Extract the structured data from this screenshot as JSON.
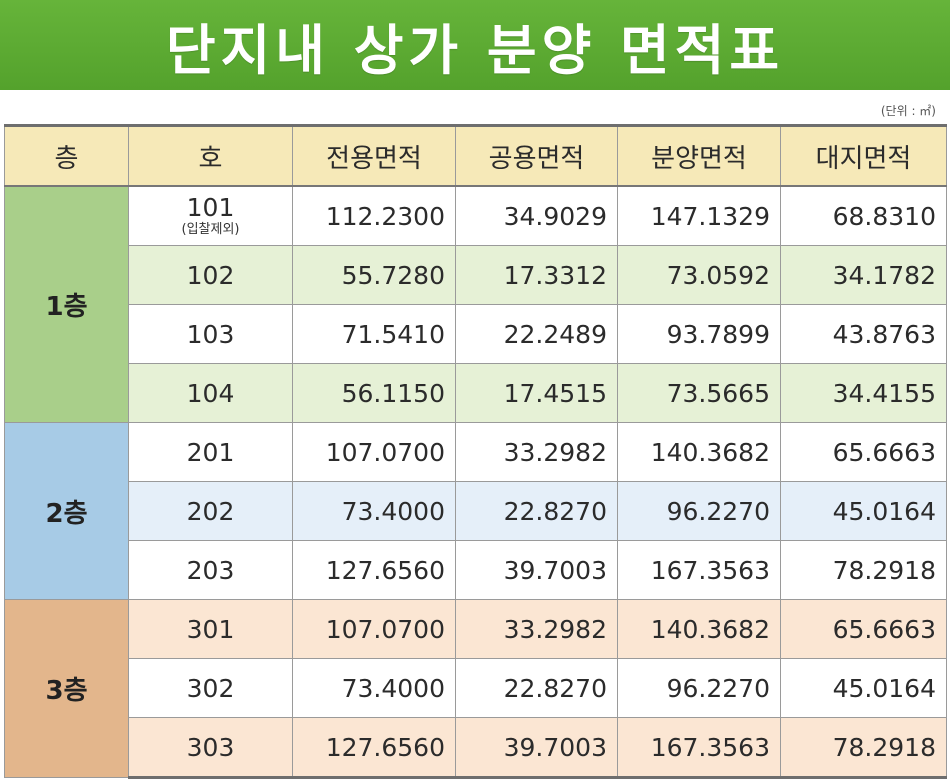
{
  "title": "단지내 상가 분양 면적표",
  "unit_label": "(단위 : ㎡)",
  "headers": [
    "층",
    "호",
    "전용면적",
    "공용면적",
    "분양면적",
    "대지면적"
  ],
  "floors": [
    {
      "label": "1층",
      "color": "#a9cf8a",
      "row_tint": "#e6f1d6"
    },
    {
      "label": "2층",
      "color": "#a7cbe6",
      "row_tint": "#e5eff9"
    },
    {
      "label": "3층",
      "color": "#e3b68c",
      "row_tint": "#fbe6d3"
    }
  ],
  "rows": [
    {
      "ho": "101",
      "note": "(입찰제외)",
      "exclusive": "112.2300",
      "common": "34.9029",
      "sale": "147.1329",
      "land": "68.8310"
    },
    {
      "ho": "102",
      "exclusive": "55.7280",
      "common": "17.3312",
      "sale": "73.0592",
      "land": "34.1782"
    },
    {
      "ho": "103",
      "exclusive": "71.5410",
      "common": "22.2489",
      "sale": "93.7899",
      "land": "43.8763"
    },
    {
      "ho": "104",
      "exclusive": "56.1150",
      "common": "17.4515",
      "sale": "73.5665",
      "land": "34.4155"
    },
    {
      "ho": "201",
      "exclusive": "107.0700",
      "common": "33.2982",
      "sale": "140.3682",
      "land": "65.6663"
    },
    {
      "ho": "202",
      "exclusive": "73.4000",
      "common": "22.8270",
      "sale": "96.2270",
      "land": "45.0164"
    },
    {
      "ho": "203",
      "exclusive": "127.6560",
      "common": "39.7003",
      "sale": "167.3563",
      "land": "78.2918"
    },
    {
      "ho": "301",
      "exclusive": "107.0700",
      "common": "33.2982",
      "sale": "140.3682",
      "land": "65.6663"
    },
    {
      "ho": "302",
      "exclusive": "73.4000",
      "common": "22.8270",
      "sale": "96.2270",
      "land": "45.0164"
    },
    {
      "ho": "303",
      "exclusive": "127.6560",
      "common": "39.7003",
      "sale": "167.3563",
      "land": "78.2918"
    }
  ]
}
